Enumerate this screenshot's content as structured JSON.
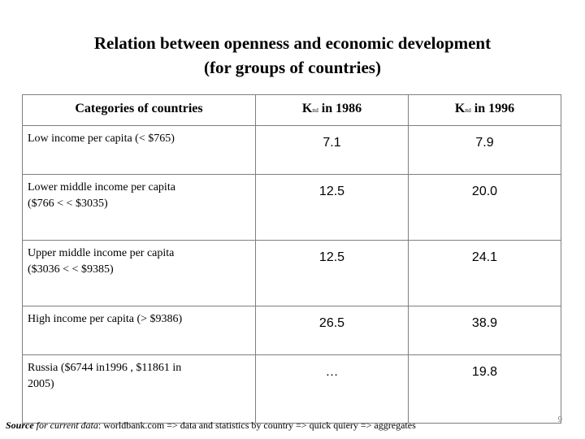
{
  "title": {
    "line1": "Relation between openness and economic development",
    "line2": "(for groups of countries)"
  },
  "table": {
    "headers": {
      "categories": "Categories of countries",
      "col1_k": "K",
      "col1_sub": "ttd",
      "col1_rest": "in 1986",
      "col2_k": "K",
      "col2_sub": "ttd",
      "col2_rest": "in 1996"
    },
    "rows": [
      {
        "label_line1": "Low income per capita (< $765)",
        "label_line2": "",
        "v1986": "7.1",
        "v1996": "7.9"
      },
      {
        "label_line1": "Lower middle income per capita",
        "label_line2": "($766 <  < $3035)",
        "v1986": "12.5",
        "v1996": "20.0"
      },
      {
        "label_line1": "Upper middle income per capita",
        "label_line2": "($3036 <  < $9385)",
        "v1986": "12.5",
        "v1996": "24.1"
      },
      {
        "label_line1": "High income per capita (> $9386)",
        "label_line2": "",
        "v1986": "26.5",
        "v1996": "38.9"
      },
      {
        "label_line1": "Russia ($6744 in1996 , $11861 in",
        "label_line2": "2005)",
        "v1986": "…",
        "v1996": "19.8"
      }
    ]
  },
  "footer": {
    "source_bold": "Source",
    "source_italic": "for current data",
    "source_text": ": worldbank.com => data and statistics by country => quick quiery => aggregates",
    "page_number": "9"
  }
}
